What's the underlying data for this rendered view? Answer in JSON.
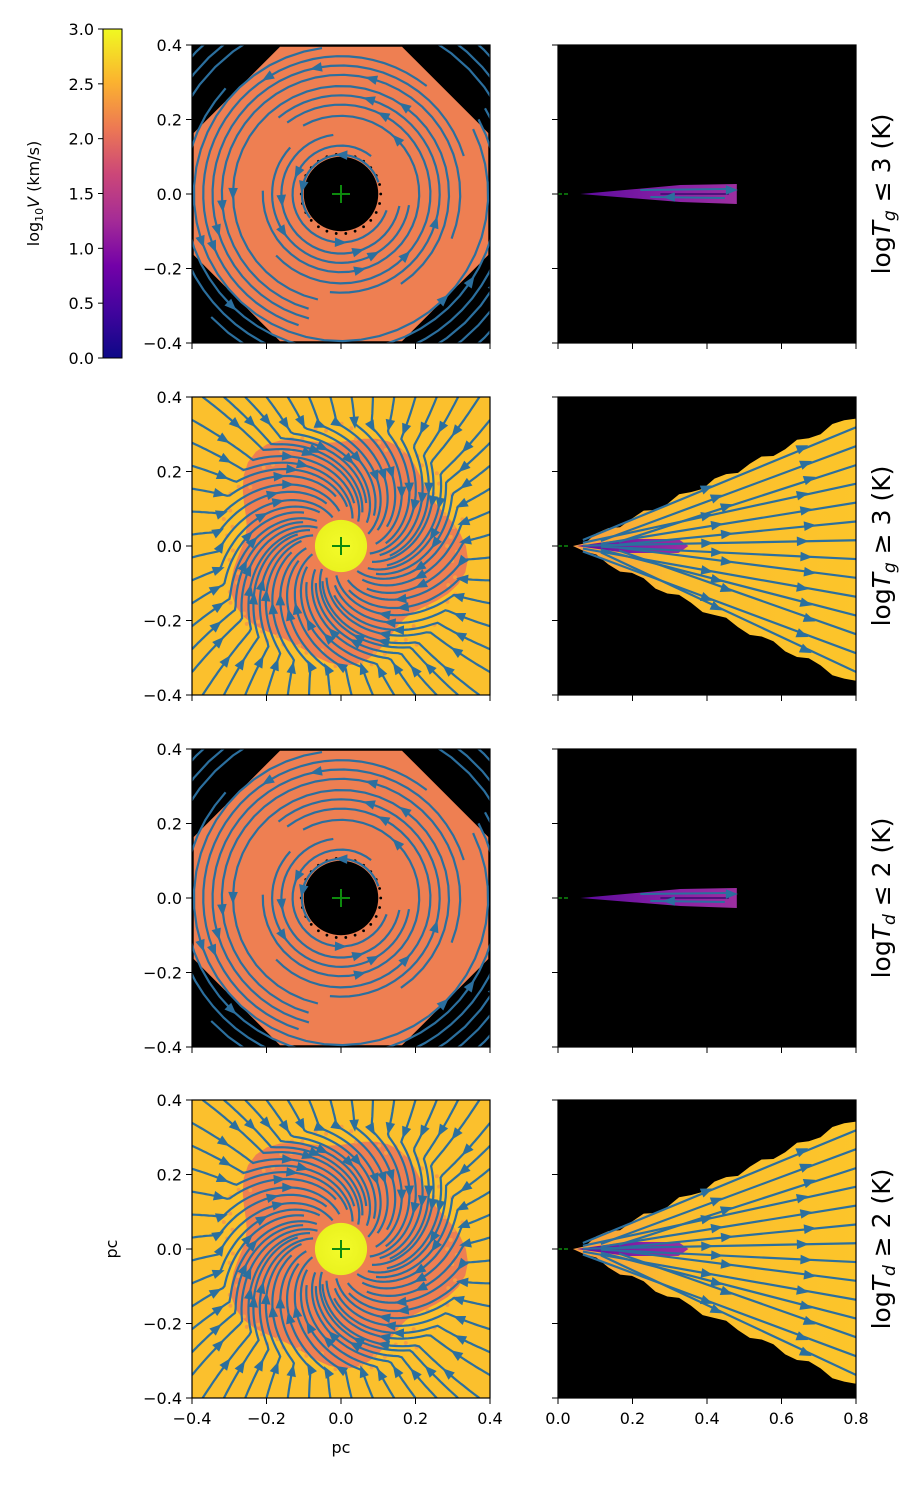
{
  "chart_data": {
    "type": "streamplot",
    "colorbar": {
      "label_prefix": "log",
      "label_sub": "10",
      "label_var": "V",
      "label_unit": " (km/s)",
      "range": [
        0.0,
        3.0
      ],
      "tick_labels": [
        "0.0",
        "0.5",
        "1.0",
        "1.5",
        "2.0",
        "2.5",
        "3.0"
      ],
      "colormap": "plasma"
    },
    "left_x": {
      "range": [
        -0.4,
        0.4
      ],
      "tick_labels": [
        "−0.4",
        "−0.2",
        "0.0",
        "0.2",
        "0.4"
      ],
      "label": "pc"
    },
    "left_y": {
      "range": [
        -0.4,
        0.4
      ],
      "tick_labels": [
        "0.4",
        "0.2",
        "0.0",
        "−0.2",
        "−0.4"
      ],
      "label": "pc"
    },
    "right_x": {
      "range": [
        0.0,
        0.8
      ],
      "tick_labels": [
        "0.0",
        "0.2",
        "0.4",
        "0.6",
        "0.8"
      ]
    },
    "rows": [
      {
        "label_pre": "log",
        "label_var": "T",
        "label_sub": "g",
        "label_rel": " ≤ 3 (K)",
        "face_on": "rotating disk, inner hole r≈0.1 pc, log V≈2.2",
        "edge_on": "thin disk 0.05–0.48 pc"
      },
      {
        "label_pre": "log",
        "label_var": "T",
        "label_sub": "g",
        "label_rel": " ≥ 3 (K)",
        "face_on": "spiral inflow, hot core r≈0.07 pc, log V≈2.7",
        "edge_on": "wedge outflow to 0.8 pc"
      },
      {
        "label_pre": "log",
        "label_var": "T",
        "label_sub": "d",
        "label_rel": " ≤ 2 (K)",
        "face_on": "rotating disk, inner hole r≈0.1 pc, log V≈2.2",
        "edge_on": "thin disk 0.05–0.48 pc"
      },
      {
        "label_pre": "log",
        "label_var": "T",
        "label_sub": "d",
        "label_rel": " ≥ 2 (K)",
        "face_on": "spiral inflow, hot core r≈0.07 pc, log V≈2.7",
        "edge_on": "wedge outflow to 0.8 pc"
      }
    ],
    "colors": {
      "stream": "#2b6f9e",
      "disk_fill": "#ee7f52",
      "outer_fill": "#fbc02d",
      "core_fill": "#f0f921",
      "thin_disk": "#7a1fa2",
      "background": "#000000",
      "center_marker": "#0d8a0d"
    }
  }
}
